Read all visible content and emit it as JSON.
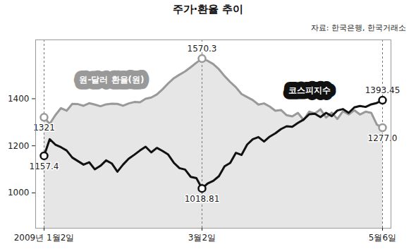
{
  "chart_data": {
    "type": "line",
    "title": "주가·환율 추이",
    "source": "자료: 한국은행, 한국거래소",
    "categories": [
      "2009년 1월2일",
      null,
      null,
      null,
      null,
      null,
      null,
      null,
      null,
      null,
      null,
      null,
      null,
      null,
      null,
      null,
      null,
      null,
      null,
      null,
      null,
      null,
      null,
      null,
      null,
      null,
      null,
      null,
      "3월2일",
      null,
      null,
      null,
      null,
      null,
      null,
      null,
      null,
      null,
      null,
      null,
      null,
      null,
      null,
      null,
      null,
      null,
      null,
      null,
      null,
      null,
      null,
      null,
      null,
      null,
      null,
      null,
      null,
      null,
      null,
      null,
      "5월6일"
    ],
    "series": [
      {
        "name": "원-달러 환율(원)",
        "color": "#999999",
        "type": "area",
        "marker": "circle",
        "values": [
          1321,
          1293,
          1330,
          1360,
          1349,
          1378,
          1377,
          1370,
          1381,
          1375,
          1368,
          1376,
          1379,
          1378,
          1370,
          1380,
          1386,
          1385,
          1400,
          1405,
          1418,
          1440,
          1465,
          1487,
          1502,
          1516,
          1534,
          1553,
          1570.3,
          1561,
          1547,
          1525,
          1496,
          1471,
          1449,
          1420,
          1407,
          1394,
          1375,
          1380,
          1367,
          1349,
          1352,
          1330,
          1325,
          1340,
          1310,
          1345,
          1337,
          1355,
          1320,
          1341,
          1314,
          1347,
          1333,
          1351,
          1333,
          1345,
          1340,
          1290,
          1277.0
        ],
        "value_labels": [
          "1321",
          null,
          null,
          null,
          null,
          null,
          null,
          null,
          null,
          null,
          null,
          null,
          null,
          null,
          null,
          null,
          null,
          null,
          null,
          null,
          null,
          null,
          null,
          null,
          null,
          null,
          null,
          null,
          "1570.3",
          null,
          null,
          null,
          null,
          null,
          null,
          null,
          null,
          null,
          null,
          null,
          null,
          null,
          null,
          null,
          null,
          null,
          null,
          null,
          null,
          null,
          null,
          null,
          null,
          null,
          null,
          null,
          null,
          null,
          null,
          null,
          "1277.0"
        ]
      },
      {
        "name": "코스피지수",
        "color": "#111111",
        "type": "line",
        "marker": "circle",
        "values": [
          1157.4,
          1228,
          1205,
          1194,
          1180,
          1150,
          1135,
          1120,
          1130,
          1100,
          1115,
          1138,
          1125,
          1090,
          1120,
          1145,
          1162,
          1180,
          1196,
          1172,
          1191,
          1178,
          1163,
          1128,
          1105,
          1099,
          1068,
          1063,
          1018.81,
          1040,
          1051,
          1071,
          1113,
          1127,
          1170,
          1161,
          1205,
          1228,
          1237,
          1218,
          1239,
          1253,
          1271,
          1283,
          1281,
          1297,
          1311,
          1334,
          1336,
          1322,
          1340,
          1326,
          1350,
          1356,
          1340,
          1363,
          1369,
          1365,
          1376,
          1382,
          1393.45
        ],
        "value_labels": [
          "1157.4",
          null,
          null,
          null,
          null,
          null,
          null,
          null,
          null,
          null,
          null,
          null,
          null,
          null,
          null,
          null,
          null,
          null,
          null,
          null,
          null,
          null,
          null,
          null,
          null,
          null,
          null,
          null,
          "1018.81",
          null,
          null,
          null,
          null,
          null,
          null,
          null,
          null,
          null,
          null,
          null,
          null,
          null,
          null,
          null,
          null,
          null,
          null,
          null,
          null,
          null,
          null,
          null,
          null,
          null,
          null,
          null,
          null,
          null,
          null,
          null,
          "1393.45"
        ]
      }
    ],
    "ylim": [
      850,
      1650
    ],
    "yticks": [
      1000,
      1200,
      1400
    ],
    "grid": false
  }
}
